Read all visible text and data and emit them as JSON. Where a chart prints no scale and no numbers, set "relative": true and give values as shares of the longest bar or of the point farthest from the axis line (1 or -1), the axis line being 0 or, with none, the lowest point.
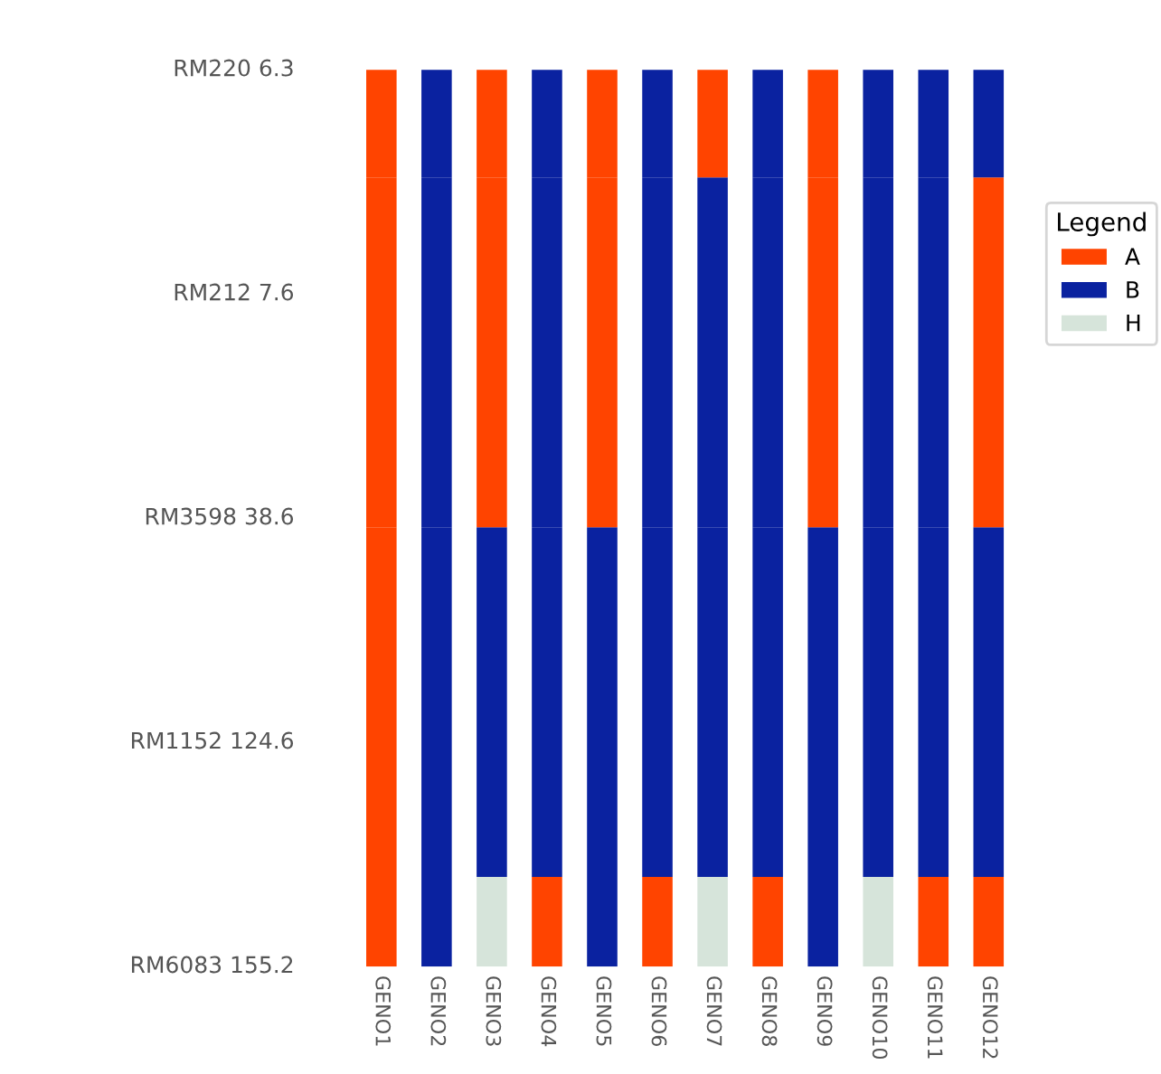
{
  "chart_data": {
    "type": "bar",
    "stacked": true,
    "relative": true,
    "legend": "right",
    "legend_title": "Legend",
    "grid": false,
    "categories": [
      "GENO1",
      "GENO2",
      "GENO3",
      "GENO4",
      "GENO5",
      "GENO6",
      "GENO7",
      "GENO8",
      "GENO9",
      "GENO10",
      "GENO11",
      "GENO12"
    ],
    "annotations": [
      "RM220 6.3",
      "RM212 7.6",
      "RM3598 38.6",
      "RM1152 124.6",
      "RM6083 155.2"
    ],
    "series": [
      {
        "name": "A",
        "color": "#ff4400",
        "values": [
          0.1,
          null,
          null,
          0.1,
          null,
          0.1,
          null,
          0.1,
          null,
          null,
          0.1,
          0.1
        ]
      },
      {
        "name": "B",
        "color": "#0a22a0",
        "values": [
          null,
          0.1,
          null,
          null,
          0.1,
          null,
          null,
          null,
          0.1,
          null,
          null,
          null
        ]
      },
      {
        "name": "H",
        "color": "#d6e4da",
        "values": [
          null,
          null,
          0.1,
          null,
          null,
          null,
          0.1,
          null,
          null,
          0.1,
          null,
          null
        ]
      },
      {
        "color": "#ff4400",
        "values": [
          0.39,
          null,
          null,
          null,
          null,
          null,
          null,
          null,
          null,
          null,
          null,
          null
        ]
      },
      {
        "color": "#0a22a0",
        "values": [
          null,
          0.39,
          0.39,
          0.39,
          0.39,
          0.39,
          0.39,
          0.39,
          0.39,
          0.39,
          0.39,
          0.39
        ]
      },
      {
        "color": "#ff4400",
        "values": [
          0.39,
          null,
          0.39,
          null,
          0.39,
          null,
          null,
          null,
          0.39,
          null,
          null,
          0.39
        ]
      },
      {
        "color": "#0a22a0",
        "values": [
          null,
          0.39,
          null,
          0.39,
          null,
          0.39,
          0.39,
          0.39,
          null,
          0.39,
          0.39,
          null
        ]
      },
      {
        "color": "#ff4400",
        "values": [
          0.12,
          null,
          0.12,
          null,
          0.12,
          null,
          0.12,
          null,
          0.12,
          null,
          null,
          null
        ]
      },
      {
        "color": "#0a22a0",
        "values": [
          null,
          0.12,
          null,
          0.12,
          null,
          0.12,
          null,
          0.12,
          null,
          0.12,
          0.12,
          0.12
        ]
      }
    ]
  }
}
